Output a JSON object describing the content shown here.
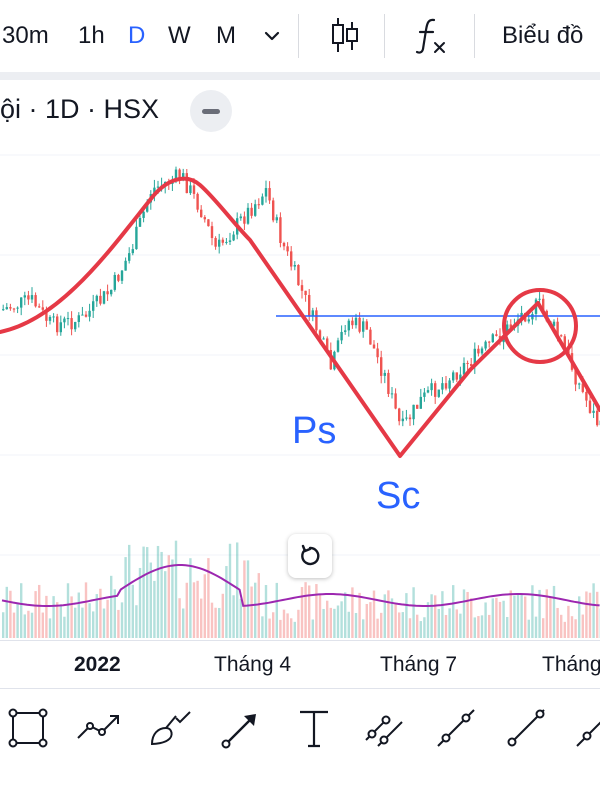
{
  "toolbar": {
    "timeframes": [
      "30m",
      "1h",
      "D",
      "W",
      "M"
    ],
    "active_timeframe": "D",
    "chart_type_label": "Biểu đồ",
    "icons": [
      "chevron-down-icon",
      "candlestick-icon",
      "indicators-fx-icon"
    ]
  },
  "legend": {
    "text": "ội · 1D · HSX"
  },
  "annotations": {
    "ps": "Ps",
    "sc": "Sc"
  },
  "time_axis": {
    "labels": [
      "2022",
      "Tháng 4",
      "Tháng 7",
      "Tháng"
    ]
  },
  "drawing_tools": [
    "rectangle-tool-icon",
    "path-tool-icon",
    "brush-tool-icon",
    "arrow-tool-icon",
    "text-tool-icon",
    "parallel-channel-icon",
    "trend-line-icon",
    "ray-line-icon",
    "extended-line-icon"
  ],
  "colors": {
    "up": "#26a69a",
    "down": "#ef5350",
    "accent": "#2962ff",
    "drawing_red": "#e53946",
    "volume_ma": "#9c27b0",
    "horizontal_line": "#2962ff"
  }
}
